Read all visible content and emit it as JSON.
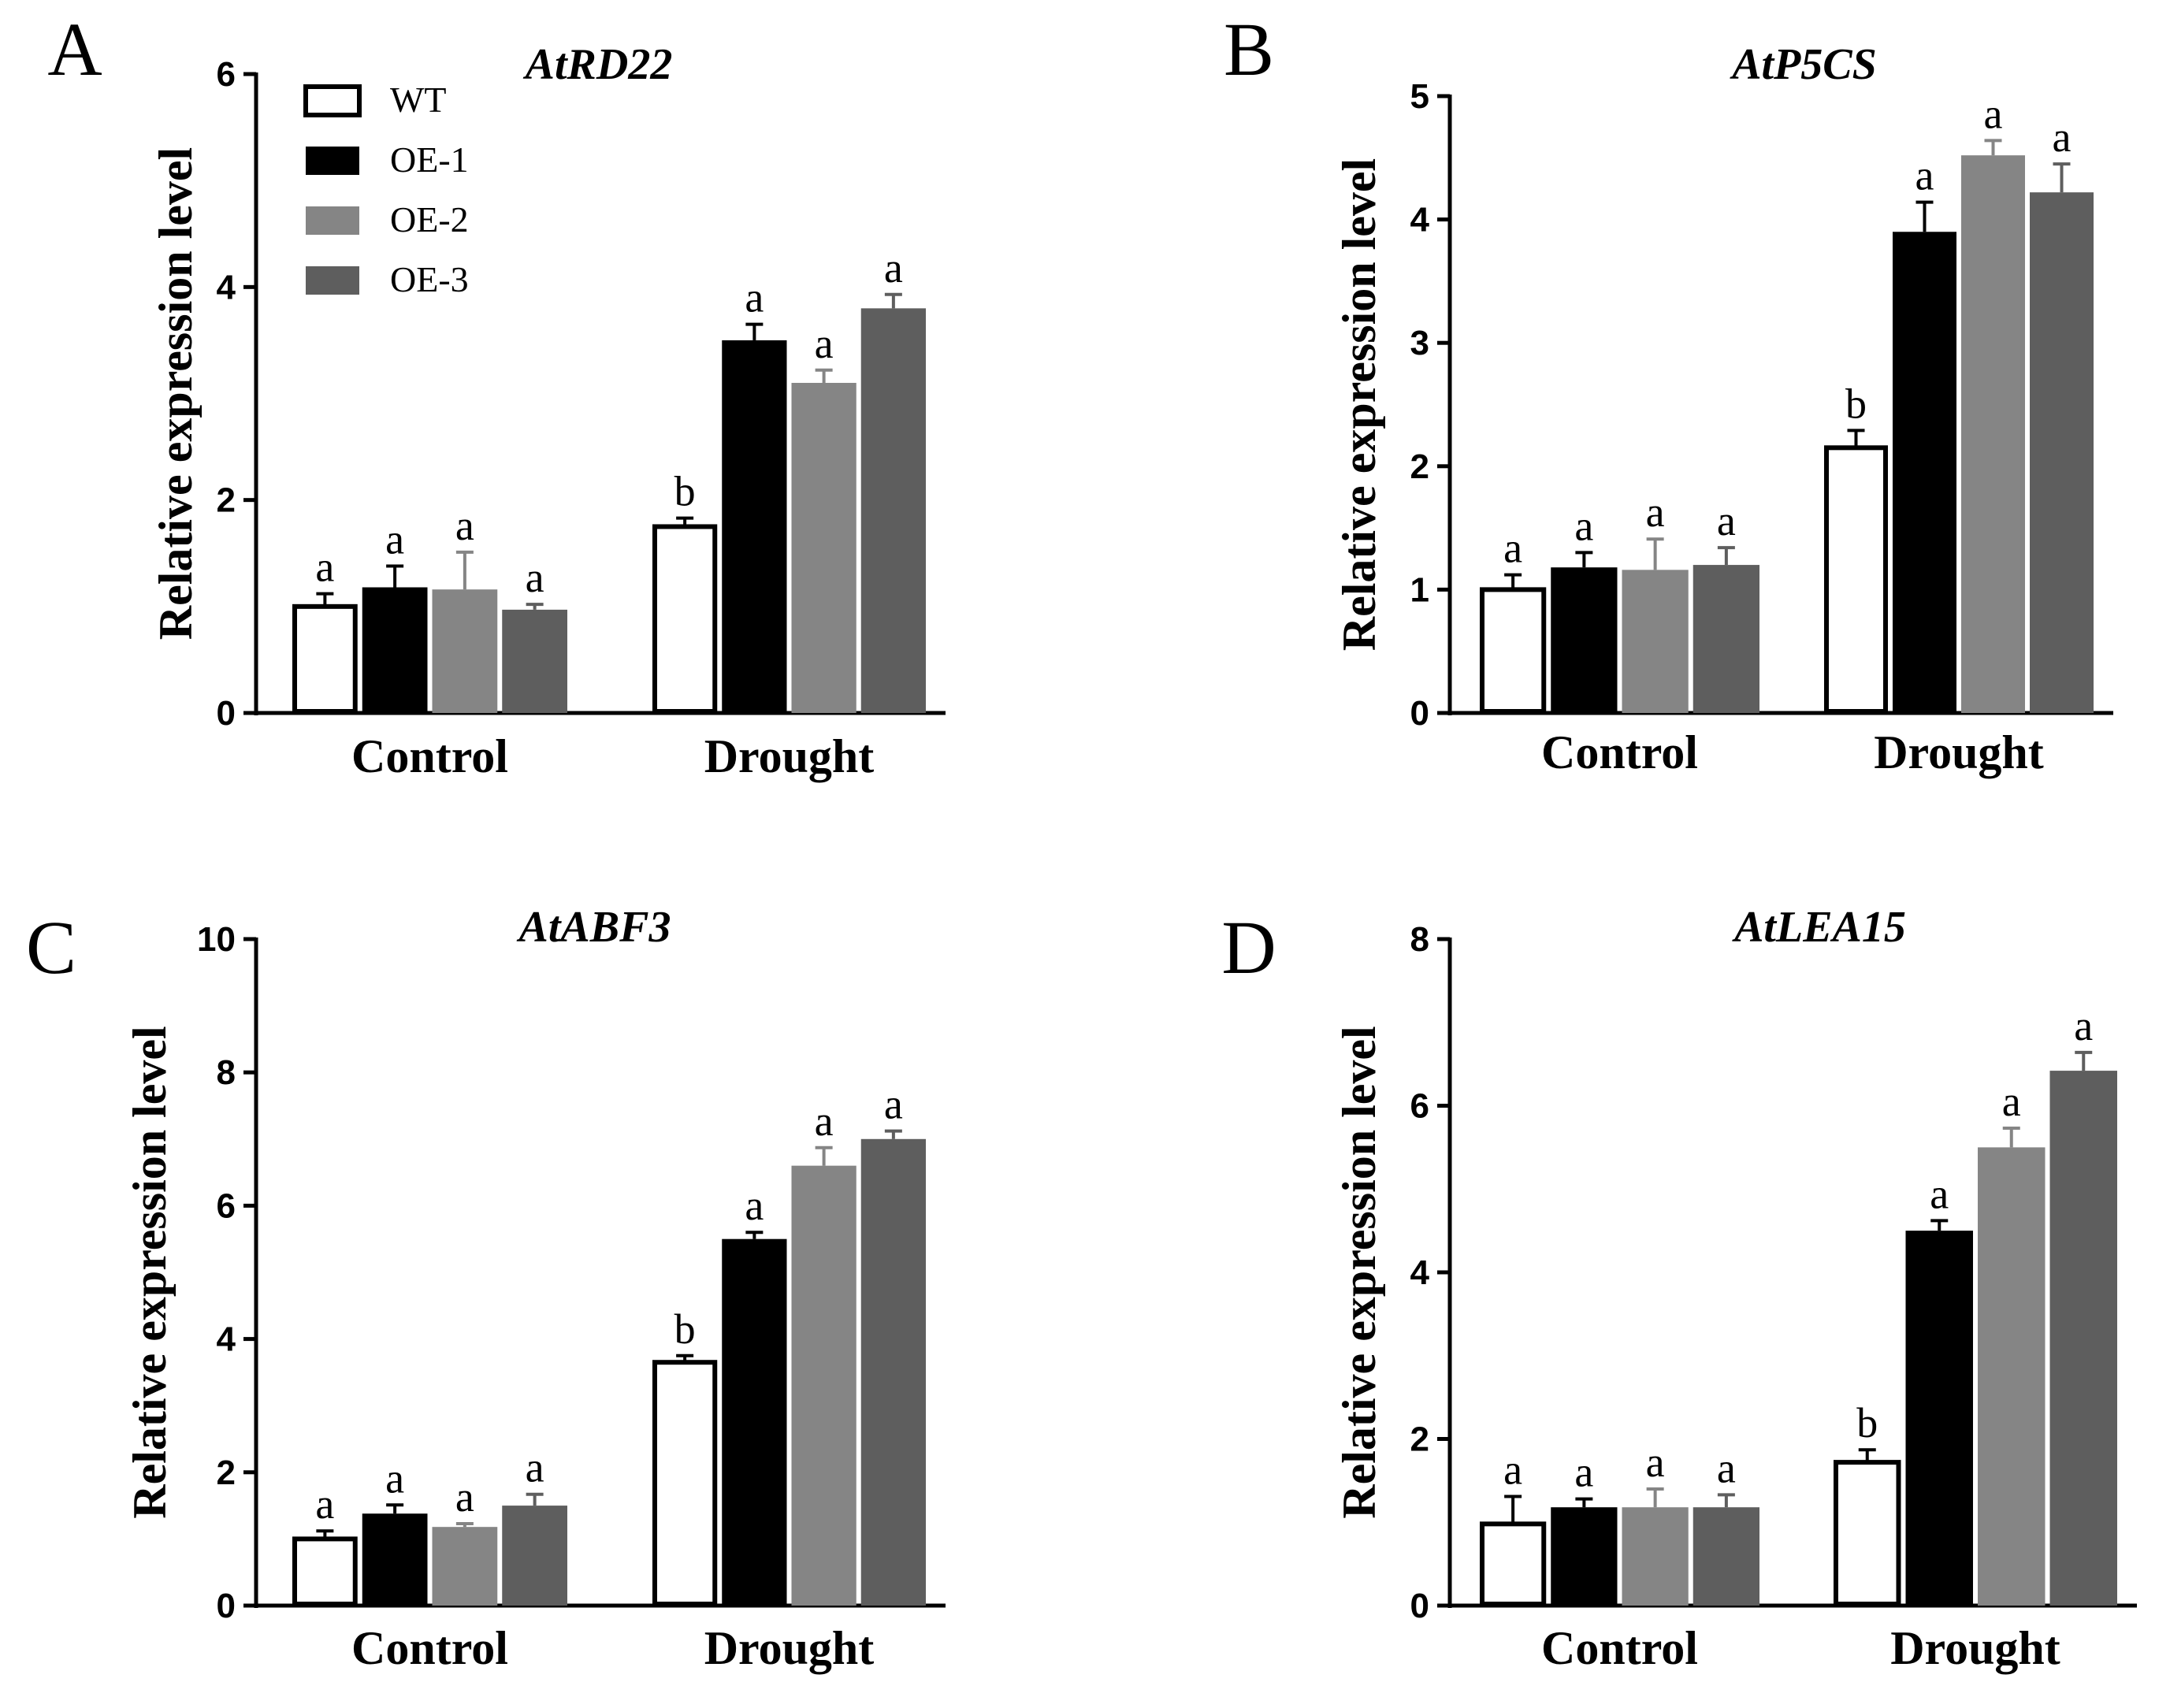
{
  "chart_data": [
    {
      "panel": "A",
      "type": "bar",
      "title": "AtRD22",
      "ylabel": "Relative expression level",
      "xlabel": "",
      "ylim": [
        0,
        6
      ],
      "yticks": [
        0,
        2,
        4,
        6
      ],
      "categories": [
        "Control",
        "Drought"
      ],
      "legend": {
        "placement": "top-left",
        "entries": [
          "WT",
          "OE-1",
          "OE-2",
          "OE-3"
        ]
      },
      "series": [
        {
          "name": "WT",
          "color": "#ffffff",
          "values": [
            1.0,
            1.75
          ],
          "errors": [
            0.12,
            0.08
          ],
          "letters": [
            "a",
            "b"
          ]
        },
        {
          "name": "OE-1",
          "color": "#000000",
          "values": [
            1.18,
            3.5
          ],
          "errors": [
            0.2,
            0.15
          ],
          "letters": [
            "a",
            "a"
          ]
        },
        {
          "name": "OE-2",
          "color": "#858585",
          "values": [
            1.16,
            3.1
          ],
          "errors": [
            0.35,
            0.12
          ],
          "letters": [
            "a",
            "a"
          ]
        },
        {
          "name": "OE-3",
          "color": "#5e5e5e",
          "values": [
            0.97,
            3.8
          ],
          "errors": [
            0.05,
            0.13
          ],
          "letters": [
            "a",
            "a"
          ]
        }
      ]
    },
    {
      "panel": "B",
      "type": "bar",
      "title": "AtP5CS",
      "ylabel": "Relative expression level",
      "xlabel": "",
      "ylim": [
        0,
        5
      ],
      "yticks": [
        0,
        1,
        2,
        3,
        4,
        5
      ],
      "categories": [
        "Control",
        "Drought"
      ],
      "series": [
        {
          "name": "WT",
          "color": "#ffffff",
          "values": [
            1.0,
            2.15
          ],
          "errors": [
            0.12,
            0.14
          ],
          "letters": [
            "a",
            "b"
          ]
        },
        {
          "name": "OE-1",
          "color": "#000000",
          "values": [
            1.18,
            3.9
          ],
          "errors": [
            0.12,
            0.24
          ],
          "letters": [
            "a",
            "a"
          ]
        },
        {
          "name": "OE-2",
          "color": "#858585",
          "values": [
            1.16,
            4.52
          ],
          "errors": [
            0.25,
            0.12
          ],
          "letters": [
            "a",
            "a"
          ]
        },
        {
          "name": "OE-3",
          "color": "#5e5e5e",
          "values": [
            1.2,
            4.22
          ],
          "errors": [
            0.14,
            0.23
          ],
          "letters": [
            "a",
            "a"
          ]
        }
      ]
    },
    {
      "panel": "C",
      "type": "bar",
      "title": "AtABF3",
      "ylabel": "Relative expression level",
      "xlabel": "",
      "ylim": [
        0,
        10
      ],
      "yticks": [
        0,
        2,
        4,
        6,
        8,
        10
      ],
      "categories": [
        "Control",
        "Drought"
      ],
      "series": [
        {
          "name": "WT",
          "color": "#ffffff",
          "values": [
            1.0,
            3.65
          ],
          "errors": [
            0.12,
            0.1
          ],
          "letters": [
            "a",
            "b"
          ]
        },
        {
          "name": "OE-1",
          "color": "#000000",
          "values": [
            1.38,
            5.5
          ],
          "errors": [
            0.13,
            0.1
          ],
          "letters": [
            "a",
            "a"
          ]
        },
        {
          "name": "OE-2",
          "color": "#858585",
          "values": [
            1.18,
            6.6
          ],
          "errors": [
            0.05,
            0.27
          ],
          "letters": [
            "a",
            "a"
          ]
        },
        {
          "name": "OE-3",
          "color": "#5e5e5e",
          "values": [
            1.5,
            7.0
          ],
          "errors": [
            0.17,
            0.12
          ],
          "letters": [
            "a",
            "a"
          ]
        }
      ]
    },
    {
      "panel": "D",
      "type": "bar",
      "title": "AtLEA15",
      "ylabel": "Relative expression level",
      "xlabel": "",
      "ylim": [
        0,
        8
      ],
      "yticks": [
        0,
        2,
        4,
        6,
        8
      ],
      "categories": [
        "Control",
        "Drought"
      ],
      "series": [
        {
          "name": "WT",
          "color": "#ffffff",
          "values": [
            0.98,
            1.72
          ],
          "errors": [
            0.33,
            0.15
          ],
          "letters": [
            "a",
            "b"
          ]
        },
        {
          "name": "OE-1",
          "color": "#000000",
          "values": [
            1.18,
            4.5
          ],
          "errors": [
            0.1,
            0.12
          ],
          "letters": [
            "a",
            "a"
          ]
        },
        {
          "name": "OE-2",
          "color": "#858585",
          "values": [
            1.18,
            5.5
          ],
          "errors": [
            0.22,
            0.23
          ],
          "letters": [
            "a",
            "a"
          ]
        },
        {
          "name": "OE-3",
          "color": "#5e5e5e",
          "values": [
            1.18,
            6.42
          ],
          "errors": [
            0.15,
            0.22
          ],
          "letters": [
            "a",
            "a"
          ]
        }
      ]
    }
  ]
}
